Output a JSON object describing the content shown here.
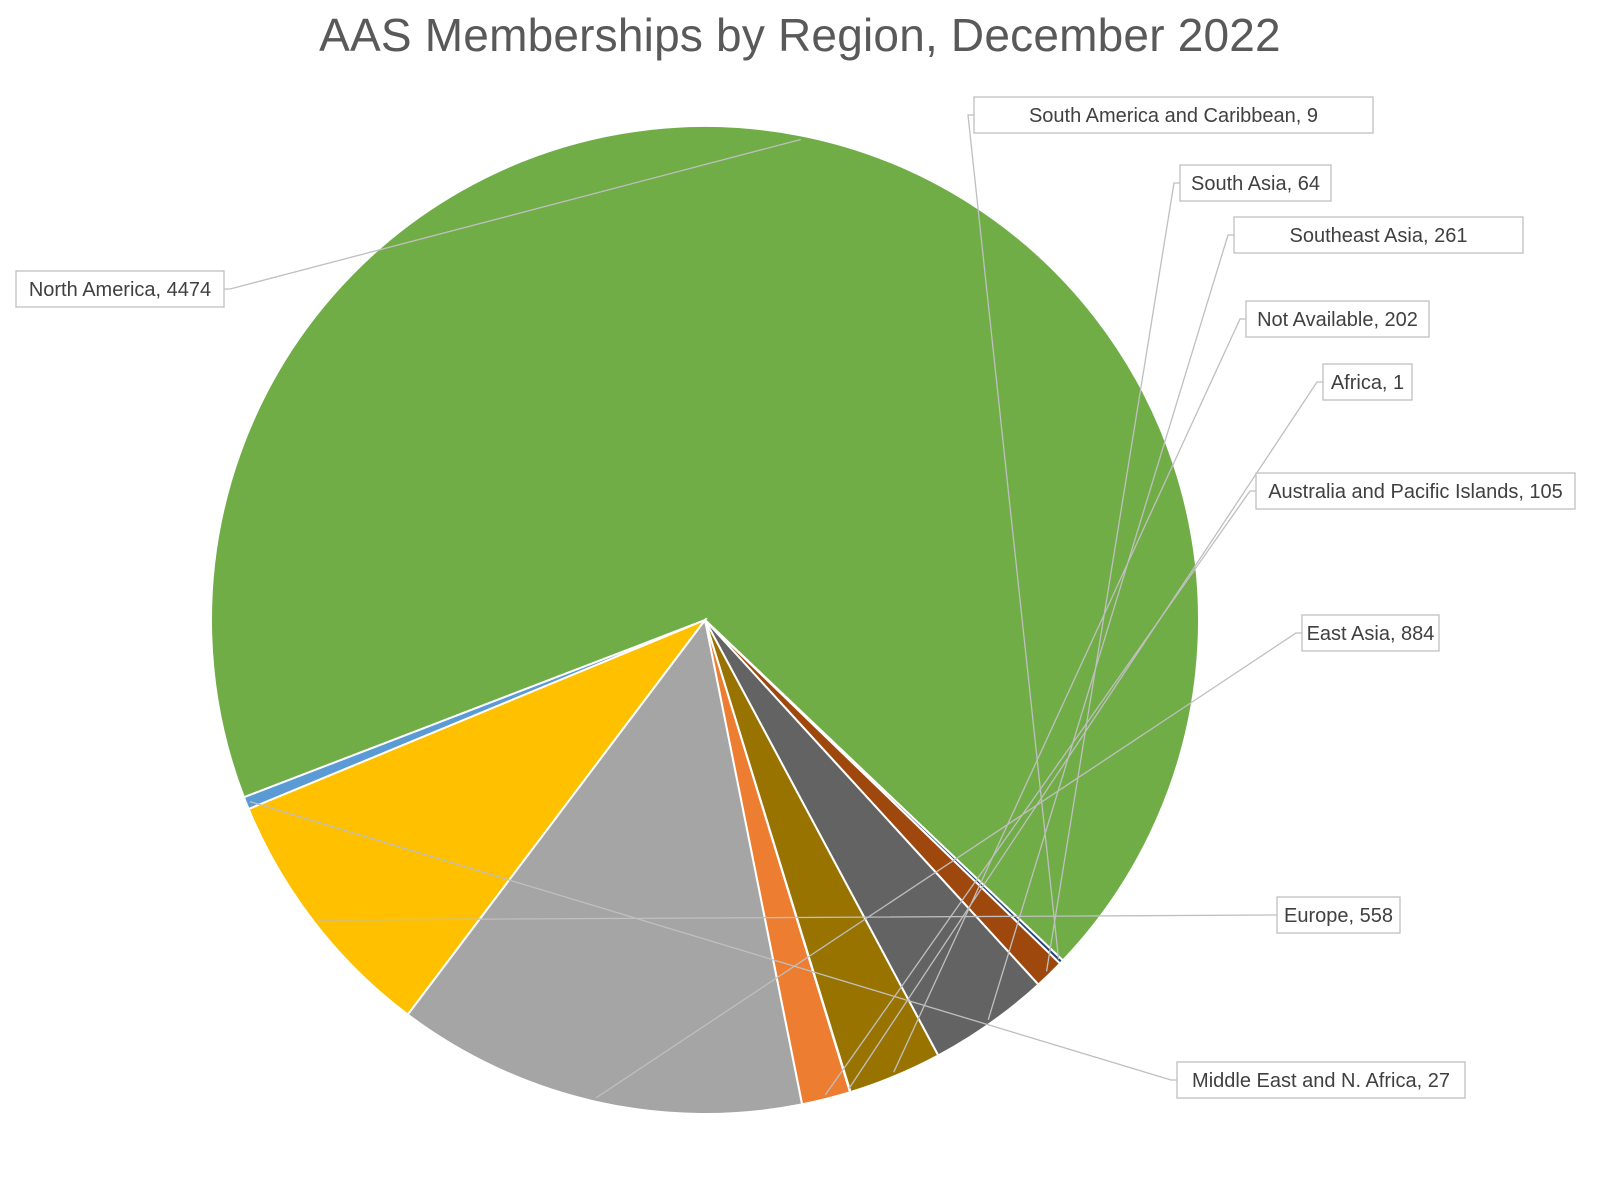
{
  "chart_data": {
    "type": "pie",
    "title": "AAS Memberships by Region, December 2022",
    "slices": [
      {
        "label": "Middle East and N. Africa",
        "value": 27,
        "color": "#5b9bd5"
      },
      {
        "label": "North America",
        "value": 4474,
        "color": "#70ad47"
      },
      {
        "label": "South America and Caribbean",
        "value": 9,
        "color": "#264478"
      },
      {
        "label": "South Asia",
        "value": 64,
        "color": "#9e480e"
      },
      {
        "label": "Southeast Asia",
        "value": 261,
        "color": "#636363"
      },
      {
        "label": "Not Available",
        "value": 202,
        "color": "#997300"
      },
      {
        "label": "Africa",
        "value": 1,
        "color": "#4472c4"
      },
      {
        "label": "Australia and Pacific Islands",
        "value": 105,
        "color": "#ed7d31"
      },
      {
        "label": "East Asia",
        "value": 884,
        "color": "#a5a5a5"
      },
      {
        "label": "Europe",
        "value": 558,
        "color": "#ffc000"
      }
    ],
    "data_labels": [
      "Middle East and N. Africa, 27",
      "North America, 4474",
      "South America and Caribbean, 9",
      "South Asia, 64",
      "Southeast Asia, 261",
      "Not Available, 202",
      "Africa, 1",
      "Australia and Pacific Islands, 105",
      "East Asia, 884",
      "Europe, 558"
    ],
    "start_angle_deg": 157.5,
    "direction": "clockwise",
    "legend": "none",
    "data_labels_style": "callouts with leader lines"
  }
}
